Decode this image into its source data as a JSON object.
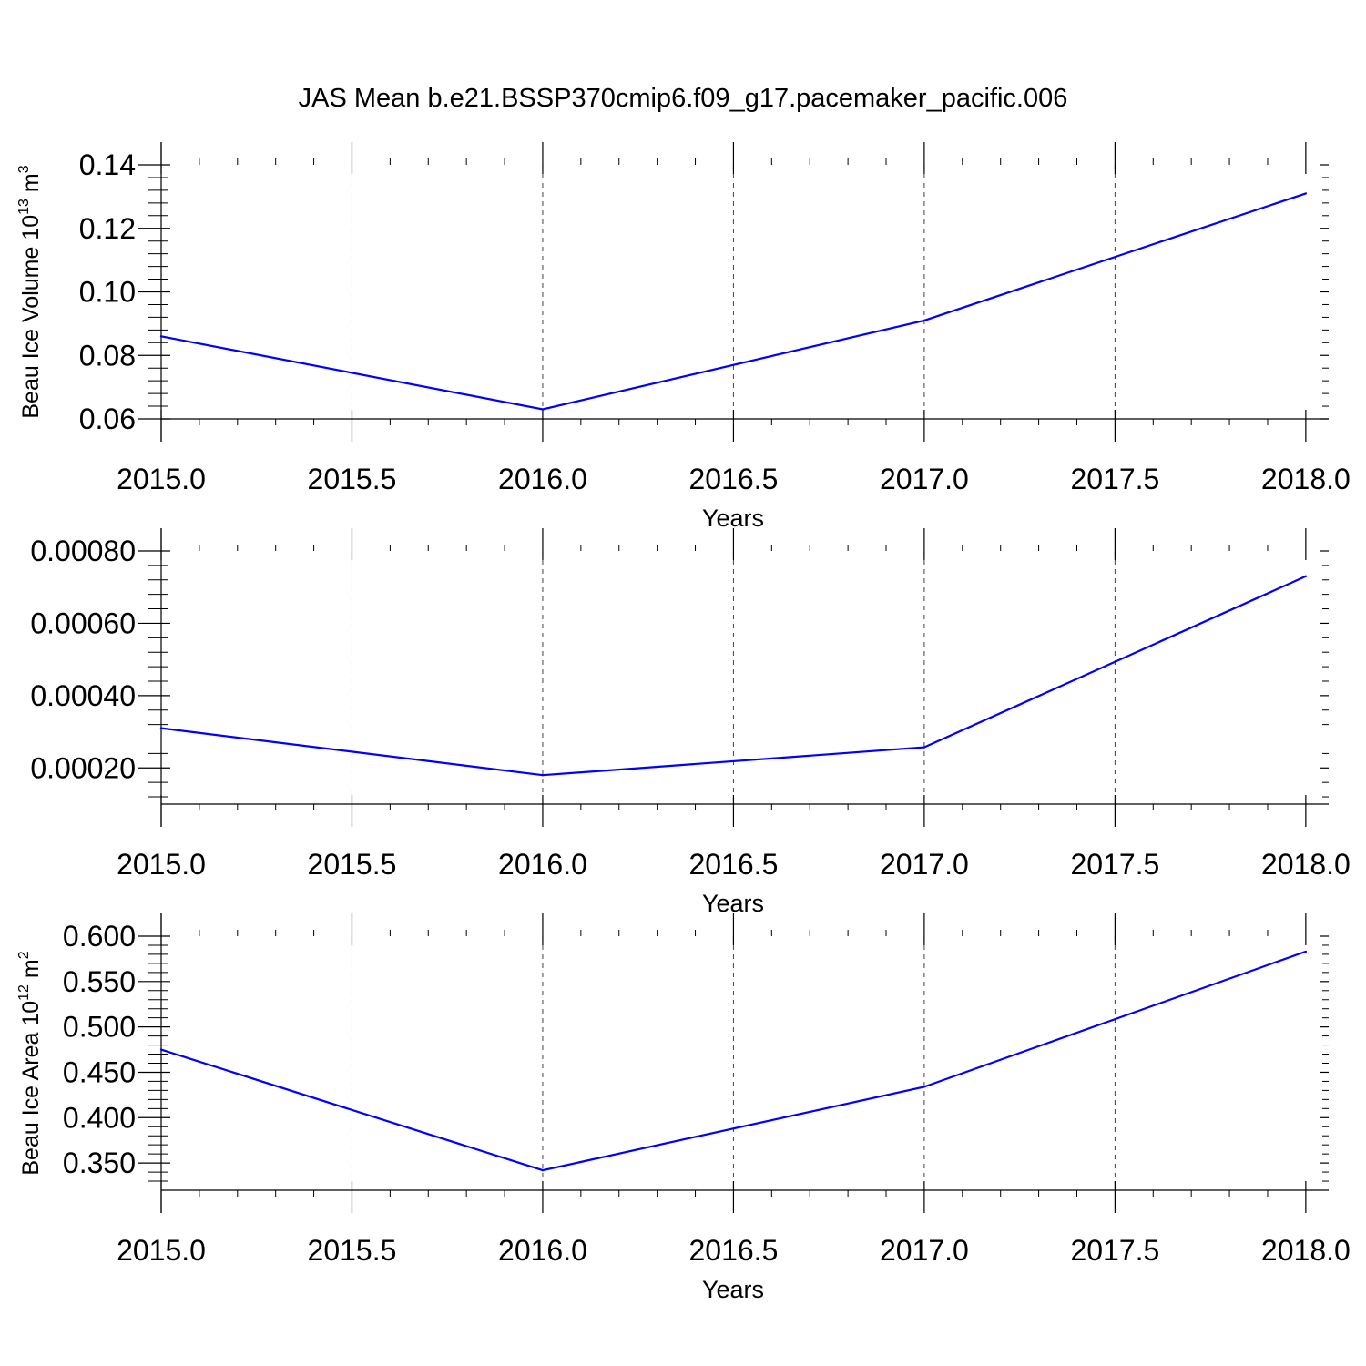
{
  "title": "JAS Mean b.e21.BSSP370cmip6.f09_g17.pacemaker_pacific.006",
  "colors": {
    "line": "#0000ff",
    "axis": "#000000",
    "grid": "#444444",
    "background": "#ffffff"
  },
  "chart_data": [
    {
      "type": "line",
      "title": "",
      "xlabel": "Years",
      "ylabel": "Beau Ice Volume 10",
      "ylabel_sup": "13",
      "ylabel_unit": " m",
      "ylabel_unit_sup": "3",
      "x": [
        2015,
        2016,
        2017,
        2018
      ],
      "series": [
        {
          "values": [
            0.086,
            0.063,
            0.091,
            0.131
          ]
        }
      ],
      "xlim": [
        2015,
        2018.06
      ],
      "ylim": [
        0.06,
        0.14
      ],
      "xticks": [
        2015,
        2015.5,
        2016,
        2016.5,
        2017,
        2017.5,
        2018
      ],
      "xtick_labels": [
        "2015.0",
        "2015.5",
        "2016.0",
        "2016.5",
        "2017.0",
        "2017.5",
        "2018.0"
      ],
      "yticks": [
        0.06,
        0.08,
        0.1,
        0.12,
        0.14
      ],
      "ytick_labels": [
        "0.06",
        "0.08",
        "0.10",
        "0.12",
        "0.14"
      ],
      "grid": "vertical dashed at 0.5-year ticks"
    },
    {
      "type": "line",
      "title": "",
      "xlabel": "Years",
      "ylabel": "",
      "x": [
        2015,
        2016,
        2017,
        2018
      ],
      "series": [
        {
          "values": [
            0.00031,
            0.00018,
            0.000257,
            0.00073
          ]
        }
      ],
      "xlim": [
        2015,
        2018.06
      ],
      "ylim": [
        0.0001,
        0.0008
      ],
      "xticks": [
        2015,
        2015.5,
        2016,
        2016.5,
        2017,
        2017.5,
        2018
      ],
      "xtick_labels": [
        "2015.0",
        "2015.5",
        "2016.0",
        "2016.5",
        "2017.0",
        "2017.5",
        "2018.0"
      ],
      "yticks": [
        0.0002,
        0.0004,
        0.0006,
        0.0008
      ],
      "ytick_labels": [
        "0.00020",
        "0.00040",
        "0.00060",
        "0.00080"
      ],
      "grid": "vertical dashed at 0.5-year ticks"
    },
    {
      "type": "line",
      "title": "",
      "xlabel": "Years",
      "ylabel": "Beau Ice Area 10",
      "ylabel_sup": "12",
      "ylabel_unit": " m",
      "ylabel_unit_sup": "2",
      "x": [
        2015,
        2016,
        2017,
        2018
      ],
      "series": [
        {
          "values": [
            0.475,
            0.342,
            0.434,
            0.583
          ]
        }
      ],
      "xlim": [
        2015,
        2018.06
      ],
      "ylim": [
        0.32,
        0.6
      ],
      "xticks": [
        2015,
        2015.5,
        2016,
        2016.5,
        2017,
        2017.5,
        2018
      ],
      "xtick_labels": [
        "2015.0",
        "2015.5",
        "2016.0",
        "2016.5",
        "2017.0",
        "2017.5",
        "2018.0"
      ],
      "yticks": [
        0.35,
        0.4,
        0.45,
        0.5,
        0.55,
        0.6
      ],
      "ytick_labels": [
        "0.350",
        "0.400",
        "0.450",
        "0.500",
        "0.550",
        "0.600"
      ],
      "grid": "vertical dashed at 0.5-year ticks"
    }
  ]
}
